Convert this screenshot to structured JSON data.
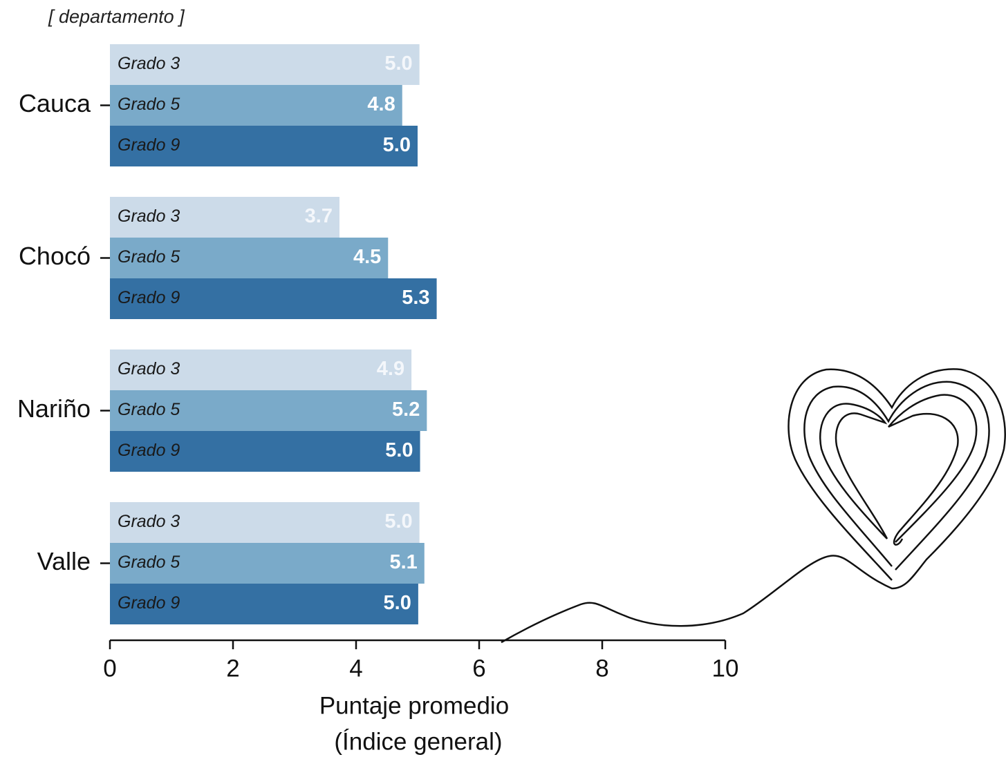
{
  "chart_data": {
    "type": "bar",
    "orientation": "horizontal",
    "ylabel": "[ departamento ]",
    "xlabel": [
      "Puntaje promedio",
      "(Índice general)"
    ],
    "categories": [
      "Cauca",
      "Chocó",
      "Nariño",
      "Valle"
    ],
    "series": [
      {
        "name": "Grado 3",
        "color": "#ccdbe9",
        "label_color": "#f4f7fb",
        "values": [
          5.03,
          3.73,
          4.9,
          5.03
        ],
        "value_labels": [
          "5.0",
          "3.7",
          "4.9",
          "5.0"
        ]
      },
      {
        "name": "Grado 5",
        "color": "#7aaac9",
        "label_color": "#ffffff",
        "values": [
          4.75,
          4.52,
          5.15,
          5.11
        ],
        "value_labels": [
          "4.8",
          "4.5",
          "5.2",
          "5.1"
        ]
      },
      {
        "name": "Grado 9",
        "color": "#3470a3",
        "label_color": "#ffffff",
        "values": [
          5.0,
          5.31,
          5.04,
          5.01
        ],
        "value_labels": [
          "5.0",
          "5.3",
          "5.0",
          "5.0"
        ]
      }
    ],
    "xlim": [
      0,
      10
    ],
    "xticks": [
      0,
      2,
      4,
      6,
      8,
      10
    ]
  }
}
